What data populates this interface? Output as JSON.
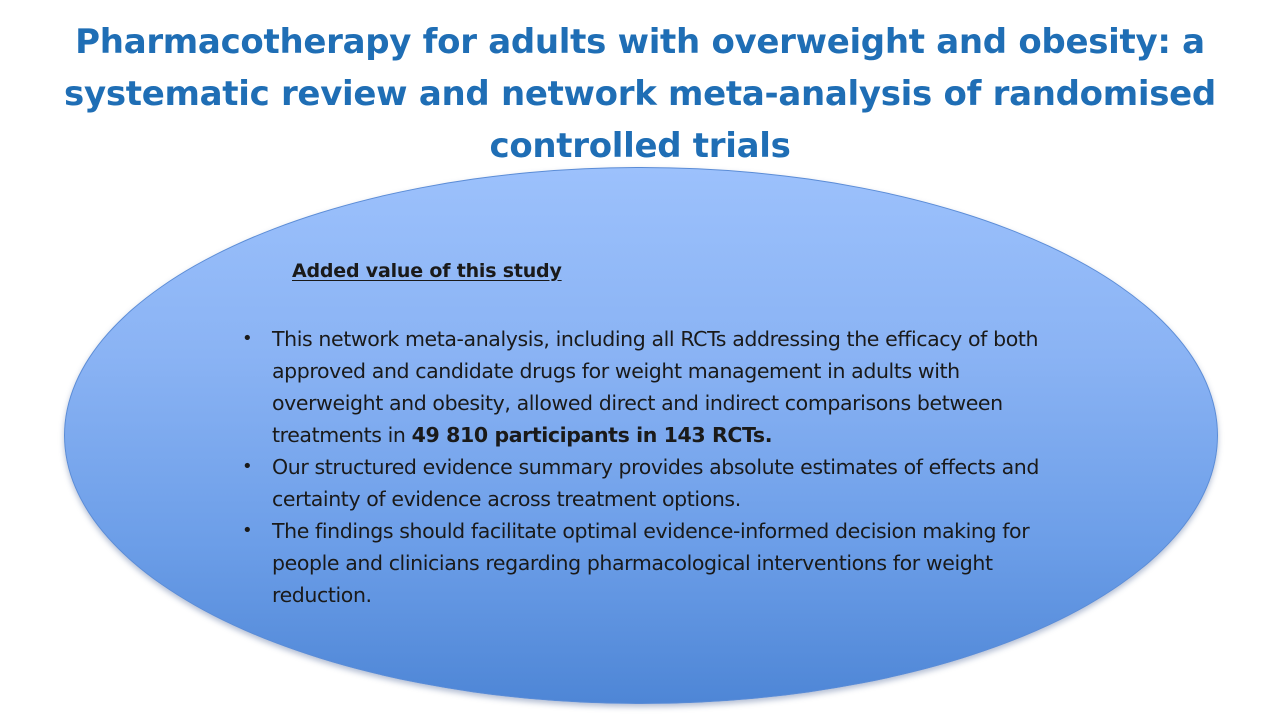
{
  "slide": {
    "title": "Pharmacotherapy for adults with overweight and obesity: a systematic review and network meta-analysis of randomised controlled trials",
    "section_heading": "Added value of this study",
    "bullet_symbol": "•",
    "bullets": [
      {
        "text": "This network meta-analysis, including all RCTs addressing the efficacy of both approved and candidate drugs for weight management in adults with overweight and obesity, allowed direct and indirect comparisons between treatments in ",
        "bold_text": "49 810 participants in 143 RCTs."
      },
      {
        "text": "Our structured evidence summary provides absolute estimates of effects and certainty of evidence across treatment options."
      },
      {
        "text": "The findings should facilitate optimal evidence-informed decision making for people and clinicians regarding pharmacological interventions for weight reduction."
      }
    ]
  },
  "colors": {
    "title": "#1F6EB5",
    "ellipse_top": "#9CC1FC",
    "ellipse_bottom": "#4E86D6",
    "text": "#1a1a1a"
  }
}
